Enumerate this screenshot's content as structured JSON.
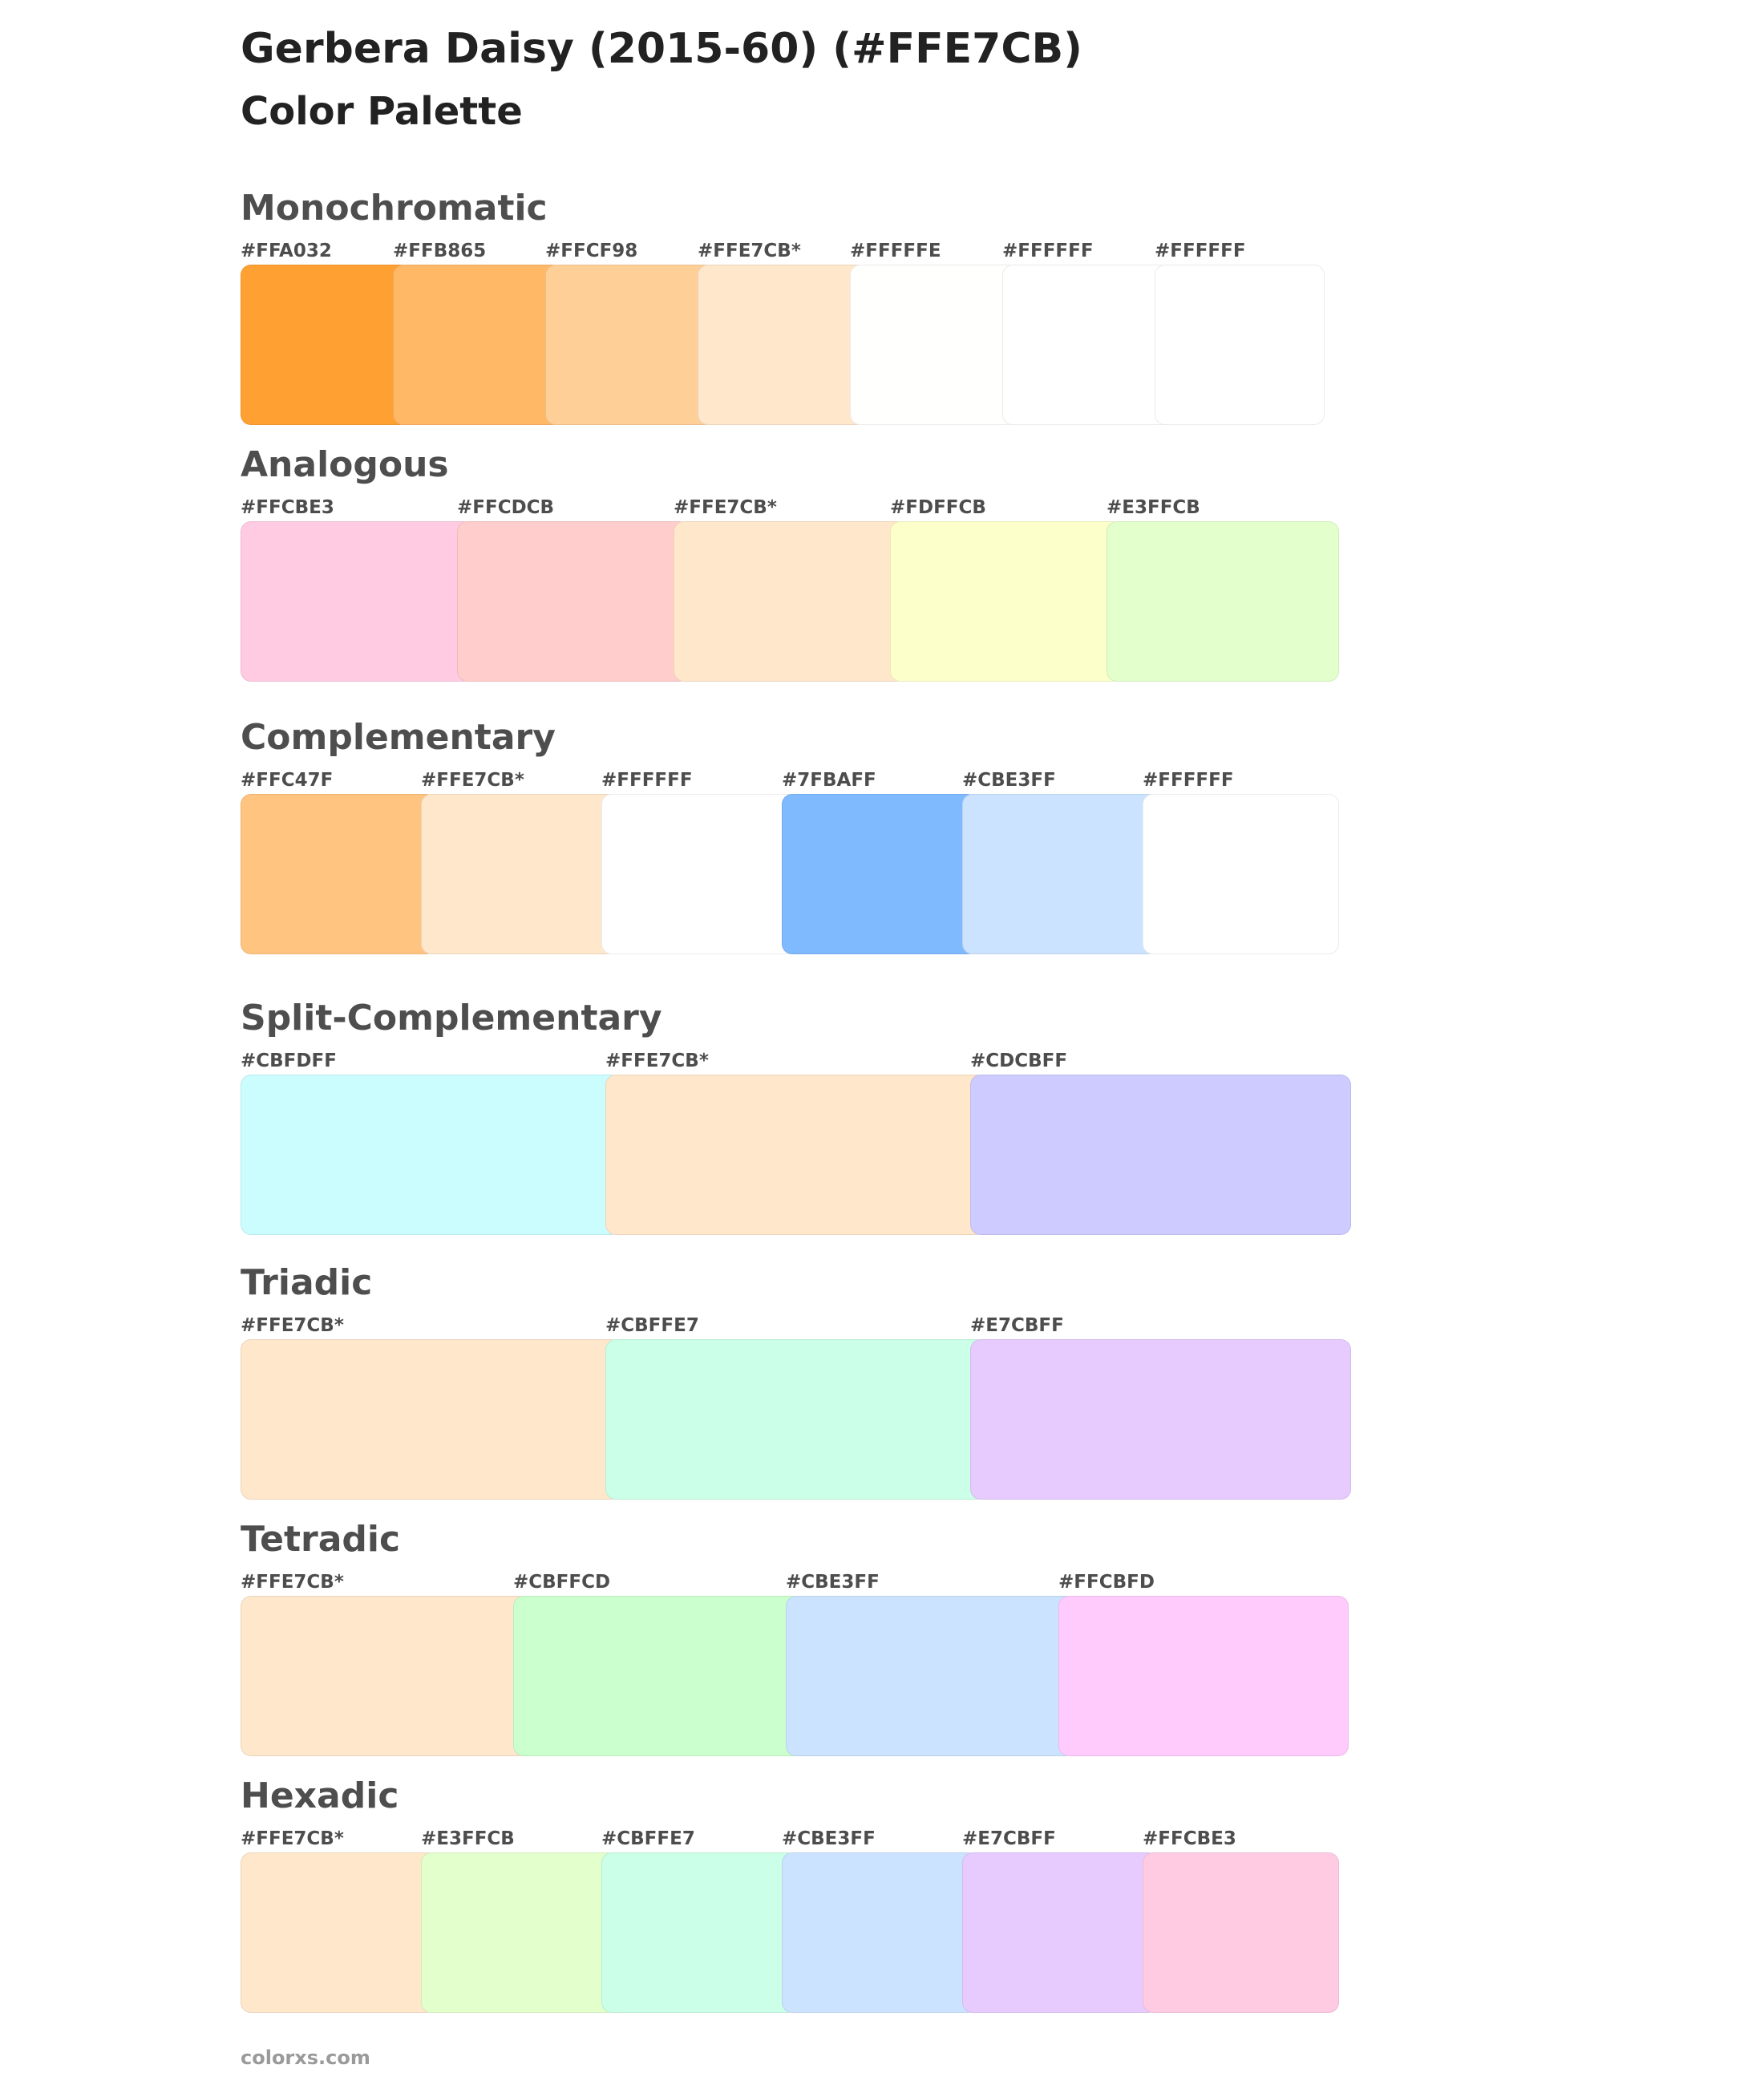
{
  "title": "Gerbera Daisy (2015-60) (#FFE7CB)",
  "subtitle": "Color Palette",
  "footer": "colorxs.com",
  "palettes": [
    {
      "name": "Monochromatic",
      "swatches": [
        {
          "label": "#FFA032",
          "color": "#FFA032"
        },
        {
          "label": "#FFB865",
          "color": "#FFB865"
        },
        {
          "label": "#FFCF98",
          "color": "#FFCF98"
        },
        {
          "label": "#FFE7CB*",
          "color": "#FFE7CB"
        },
        {
          "label": "#FFFFFE",
          "color": "#FFFFFE"
        },
        {
          "label": "#FFFFFF",
          "color": "#FFFFFF"
        },
        {
          "label": "#FFFFFF",
          "color": "#FFFFFF"
        }
      ]
    },
    {
      "name": "Analogous",
      "swatches": [
        {
          "label": "#FFCBE3",
          "color": "#FFCBE3"
        },
        {
          "label": "#FFCDCB",
          "color": "#FFCDCB"
        },
        {
          "label": "#FFE7CB*",
          "color": "#FFE7CB"
        },
        {
          "label": "#FDFFCB",
          "color": "#FDFFCB"
        },
        {
          "label": "#E3FFCB",
          "color": "#E3FFCB"
        }
      ]
    },
    {
      "name": "Complementary",
      "swatches": [
        {
          "label": "#FFC47F",
          "color": "#FFC47F"
        },
        {
          "label": "#FFE7CB*",
          "color": "#FFE7CB"
        },
        {
          "label": "#FFFFFF",
          "color": "#FFFFFF"
        },
        {
          "label": "#7FBAFF",
          "color": "#7FBAFF"
        },
        {
          "label": "#CBE3FF",
          "color": "#CBE3FF"
        },
        {
          "label": "#FFFFFF",
          "color": "#FFFFFF"
        }
      ]
    },
    {
      "name": "Split-Complementary",
      "swatches": [
        {
          "label": "#CBFDFF",
          "color": "#CBFDFF"
        },
        {
          "label": "#FFE7CB*",
          "color": "#FFE7CB"
        },
        {
          "label": "#CDCBFF",
          "color": "#CDCBFF"
        }
      ]
    },
    {
      "name": "Triadic",
      "swatches": [
        {
          "label": "#FFE7CB*",
          "color": "#FFE7CB"
        },
        {
          "label": "#CBFFE7",
          "color": "#CBFFE7"
        },
        {
          "label": "#E7CBFF",
          "color": "#E7CBFF"
        }
      ]
    },
    {
      "name": "Tetradic",
      "swatches": [
        {
          "label": "#FFE7CB*",
          "color": "#FFE7CB"
        },
        {
          "label": "#CBFFCD",
          "color": "#CBFFCD"
        },
        {
          "label": "#CBE3FF",
          "color": "#CBE3FF"
        },
        {
          "label": "#FFCBFD",
          "color": "#FFCBFD"
        }
      ]
    },
    {
      "name": "Hexadic",
      "swatches": [
        {
          "label": "#FFE7CB*",
          "color": "#FFE7CB"
        },
        {
          "label": "#E3FFCB",
          "color": "#E3FFCB"
        },
        {
          "label": "#CBFFE7",
          "color": "#CBFFE7"
        },
        {
          "label": "#CBE3FF",
          "color": "#CBE3FF"
        },
        {
          "label": "#E7CBFF",
          "color": "#E7CBFF"
        },
        {
          "label": "#FFCBE3",
          "color": "#FFCBE3"
        }
      ]
    }
  ]
}
